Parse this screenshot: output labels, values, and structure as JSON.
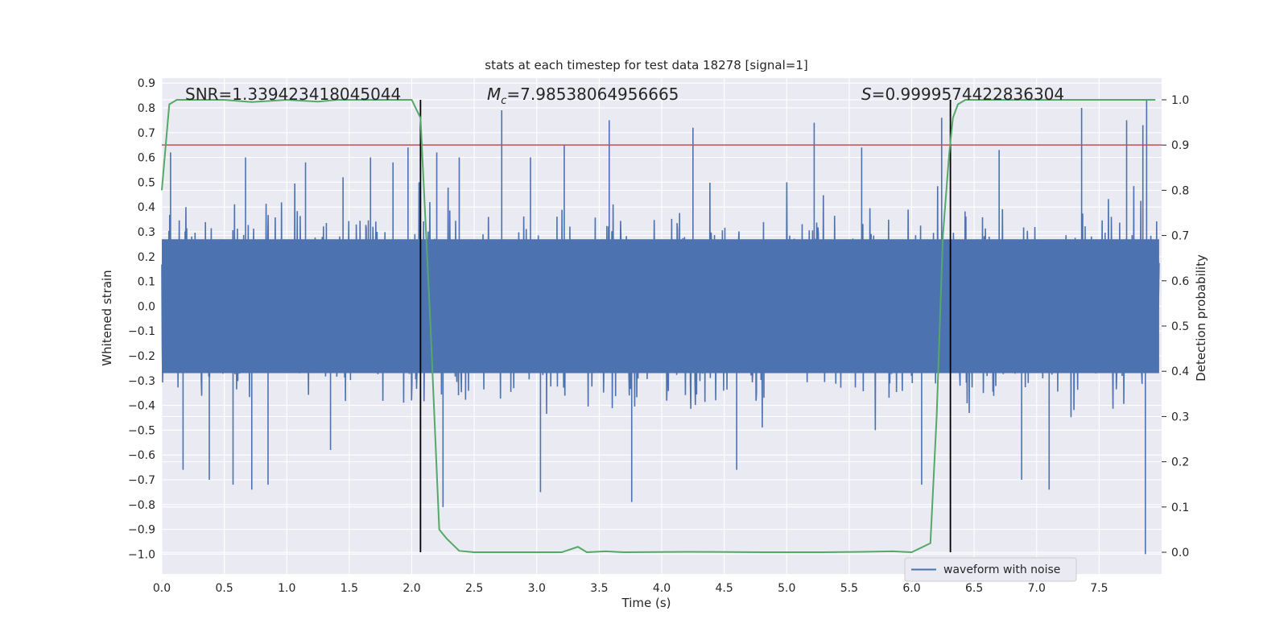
{
  "chart_data": {
    "type": "line",
    "title": "stats at each timestep for test data 18278 [signal=1]",
    "xlabel": "Time (s)",
    "ylabel_left": "Whitened strain",
    "ylabel_right": "Detection probability",
    "xlim": [
      0.0,
      8.0
    ],
    "ylim_left": [
      -1.08,
      0.92
    ],
    "ylim_right": [
      -0.048,
      1.048
    ],
    "xticks": [
      "0.0",
      "0.5",
      "1.0",
      "1.5",
      "2.0",
      "2.5",
      "3.0",
      "3.5",
      "4.0",
      "4.5",
      "5.0",
      "5.5",
      "6.0",
      "6.5",
      "7.0",
      "7.5"
    ],
    "xtick_values": [
      0.0,
      0.5,
      1.0,
      1.5,
      2.0,
      2.5,
      3.0,
      3.5,
      4.0,
      4.5,
      5.0,
      5.5,
      6.0,
      6.5,
      7.0,
      7.5
    ],
    "yticks_left": [
      "0.9",
      "0.8",
      "0.7",
      "0.6",
      "0.5",
      "0.4",
      "0.3",
      "0.2",
      "0.1",
      "0.0",
      "−0.1",
      "−0.2",
      "−0.3",
      "−0.4",
      "−0.5",
      "−0.6",
      "−0.7",
      "−0.8",
      "−0.9",
      "−1.0"
    ],
    "ytick_values_left": [
      0.9,
      0.8,
      0.7,
      0.6,
      0.5,
      0.4,
      0.3,
      0.2,
      0.1,
      0.0,
      -0.1,
      -0.2,
      -0.3,
      -0.4,
      -0.5,
      -0.6,
      -0.7,
      -0.8,
      -0.9,
      -1.0
    ],
    "yticks_right": [
      "1.0",
      "0.9",
      "0.8",
      "0.7",
      "0.6",
      "0.5",
      "0.4",
      "0.3",
      "0.2",
      "0.1",
      "0.0"
    ],
    "ytick_values_right": [
      1.0,
      0.9,
      0.8,
      0.7,
      0.6,
      0.5,
      0.4,
      0.3,
      0.2,
      0.1,
      0.0
    ],
    "annotations": [
      {
        "id": "snr",
        "text_plain": "SNR=1.339423418045044"
      },
      {
        "id": "mc",
        "text_plain": "=7.98538064956665",
        "symbol": "M",
        "subscript": "c"
      },
      {
        "id": "s",
        "text_plain": "=0.9999574422836304",
        "symbol": "S"
      }
    ],
    "series": [
      {
        "name": "waveform with noise",
        "axis": "left",
        "color": "#4c72b0",
        "note": "dense noisy strain trace spanning roughly -0.5..0.5 with spikes to about -1.0 and 0.83",
        "envelope_top": 0.45,
        "envelope_bottom": -0.45,
        "spikes": [
          {
            "x": 0.07,
            "y": 0.62
          },
          {
            "x": 0.17,
            "y": -0.66
          },
          {
            "x": 0.38,
            "y": -0.7
          },
          {
            "x": 0.57,
            "y": -0.72
          },
          {
            "x": 0.67,
            "y": 0.6
          },
          {
            "x": 0.72,
            "y": -0.74
          },
          {
            "x": 0.85,
            "y": -0.72
          },
          {
            "x": 1.15,
            "y": 0.58
          },
          {
            "x": 1.35,
            "y": -0.58
          },
          {
            "x": 1.45,
            "y": 0.52
          },
          {
            "x": 1.67,
            "y": 0.6
          },
          {
            "x": 1.85,
            "y": 0.58
          },
          {
            "x": 1.97,
            "y": 0.64
          },
          {
            "x": 2.2,
            "y": 0.62
          },
          {
            "x": 2.25,
            "y": -0.81
          },
          {
            "x": 2.38,
            "y": 0.6
          },
          {
            "x": 2.72,
            "y": 0.79
          },
          {
            "x": 2.95,
            "y": 0.6
          },
          {
            "x": 3.03,
            "y": -0.75
          },
          {
            "x": 3.22,
            "y": 0.65
          },
          {
            "x": 3.58,
            "y": 0.75
          },
          {
            "x": 3.76,
            "y": -0.79
          },
          {
            "x": 4.25,
            "y": 0.72
          },
          {
            "x": 4.6,
            "y": -0.66
          },
          {
            "x": 5.22,
            "y": 0.74
          },
          {
            "x": 5.6,
            "y": 0.64
          },
          {
            "x": 6.08,
            "y": -0.72
          },
          {
            "x": 6.24,
            "y": 0.76
          },
          {
            "x": 6.7,
            "y": 0.63
          },
          {
            "x": 6.88,
            "y": -0.7
          },
          {
            "x": 7.1,
            "y": -0.74
          },
          {
            "x": 7.36,
            "y": 0.8
          },
          {
            "x": 7.72,
            "y": 0.75
          },
          {
            "x": 7.85,
            "y": 0.73
          },
          {
            "x": 7.87,
            "y": -1.0
          },
          {
            "x": 7.88,
            "y": 0.83
          }
        ]
      },
      {
        "name": "",
        "axis": "right",
        "color": "#55a868",
        "x": [
          0.0,
          0.06,
          0.12,
          0.2,
          0.5,
          0.72,
          1.0,
          1.25,
          1.4,
          1.6,
          1.8,
          2.0,
          2.07,
          2.15,
          2.22,
          2.28,
          2.38,
          2.5,
          2.8,
          3.2,
          3.33,
          3.4,
          3.55,
          3.7,
          4.2,
          4.8,
          5.3,
          5.6,
          5.85,
          6.0,
          6.15,
          6.2,
          6.25,
          6.3,
          6.33,
          6.37,
          6.43,
          6.5,
          6.8,
          7.5,
          7.95
        ],
        "y": [
          0.8,
          0.99,
          1.0,
          1.0,
          1.0,
          0.995,
          1.0,
          0.996,
          1.0,
          1.0,
          1.0,
          1.0,
          0.96,
          0.5,
          0.05,
          0.03,
          0.003,
          0.0,
          0.0,
          0.0,
          0.012,
          0.0,
          0.002,
          0.0,
          0.001,
          0.0,
          0.0,
          0.001,
          0.002,
          0.0,
          0.02,
          0.3,
          0.7,
          0.88,
          0.96,
          0.99,
          1.0,
          1.0,
          1.0,
          1.0,
          1.0
        ]
      }
    ],
    "threshold_line": {
      "axis": "right",
      "y": 0.9,
      "color": "#c44e52"
    },
    "vertical_lines": [
      {
        "x": 2.07,
        "color": "#000000"
      },
      {
        "x": 6.31,
        "color": "#000000"
      }
    ],
    "legend": {
      "placement": "lower-right",
      "entries": [
        {
          "label": "waveform with noise",
          "color": "#4c72b0"
        }
      ]
    },
    "grid": true,
    "background": "#eaeaf2"
  }
}
